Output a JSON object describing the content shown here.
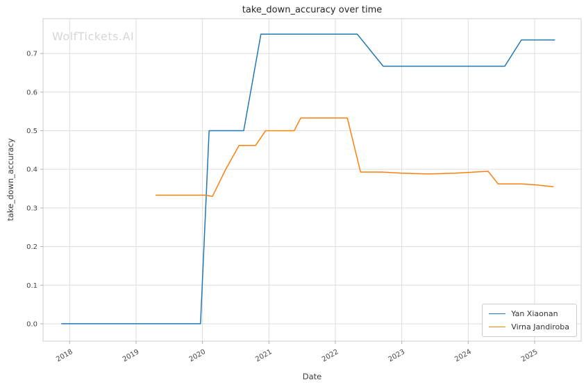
{
  "watermark": "WolfTickets.AI",
  "chart_data": {
    "type": "line",
    "title": "take_down_accuracy over time",
    "xlabel": "Date",
    "ylabel": "take_down_accuracy",
    "xlim": [
      2017.6,
      2025.7
    ],
    "ylim": [
      -0.045,
      0.79
    ],
    "x_ticks": [
      2018,
      2019,
      2020,
      2021,
      2022,
      2023,
      2024,
      2025
    ],
    "y_ticks": [
      0.0,
      0.1,
      0.2,
      0.3,
      0.4,
      0.5,
      0.6,
      0.7
    ],
    "grid": true,
    "legend_position": "lower right",
    "series": [
      {
        "name": "Yan Xiaonan",
        "color": "#1f77b4",
        "points": [
          [
            2017.88,
            0.0
          ],
          [
            2018.5,
            0.0
          ],
          [
            2019.0,
            0.0
          ],
          [
            2019.5,
            0.0
          ],
          [
            2019.97,
            0.0
          ],
          [
            2020.1,
            0.5
          ],
          [
            2020.3,
            0.5
          ],
          [
            2020.62,
            0.5
          ],
          [
            2020.88,
            0.75
          ],
          [
            2021.3,
            0.75
          ],
          [
            2021.8,
            0.75
          ],
          [
            2022.33,
            0.75
          ],
          [
            2022.72,
            0.667
          ],
          [
            2023.2,
            0.667
          ],
          [
            2023.8,
            0.667
          ],
          [
            2024.55,
            0.667
          ],
          [
            2024.8,
            0.735
          ],
          [
            2025.3,
            0.735
          ]
        ]
      },
      {
        "name": "Virna Jandiroba",
        "color": "#ff7f0e",
        "points": [
          [
            2019.3,
            0.333
          ],
          [
            2019.7,
            0.333
          ],
          [
            2020.05,
            0.333
          ],
          [
            2020.15,
            0.33
          ],
          [
            2020.35,
            0.4
          ],
          [
            2020.55,
            0.462
          ],
          [
            2020.8,
            0.462
          ],
          [
            2020.95,
            0.5
          ],
          [
            2021.2,
            0.5
          ],
          [
            2021.38,
            0.5
          ],
          [
            2021.48,
            0.533
          ],
          [
            2021.8,
            0.533
          ],
          [
            2022.18,
            0.533
          ],
          [
            2022.38,
            0.393
          ],
          [
            2022.7,
            0.393
          ],
          [
            2023.0,
            0.39
          ],
          [
            2023.4,
            0.388
          ],
          [
            2023.8,
            0.39
          ],
          [
            2024.1,
            0.393
          ],
          [
            2024.3,
            0.395
          ],
          [
            2024.45,
            0.362
          ],
          [
            2024.8,
            0.362
          ],
          [
            2025.0,
            0.36
          ],
          [
            2025.28,
            0.355
          ]
        ]
      }
    ]
  }
}
